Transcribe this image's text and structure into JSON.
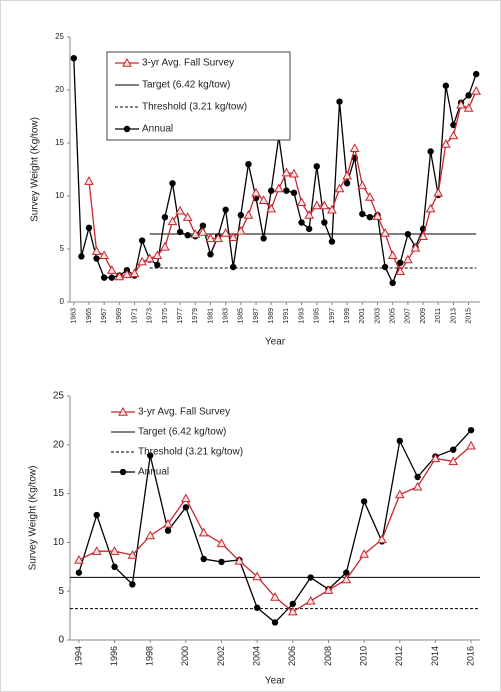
{
  "chart_data": [
    {
      "type": "line",
      "xlabel": "Year",
      "ylabel": "Survey Weight (Kg/tow)",
      "legend_box": true,
      "x": [
        1963,
        1964,
        1965,
        1966,
        1967,
        1968,
        1969,
        1970,
        1971,
        1972,
        1973,
        1974,
        1975,
        1976,
        1977,
        1978,
        1979,
        1980,
        1981,
        1982,
        1983,
        1984,
        1985,
        1986,
        1987,
        1988,
        1989,
        1990,
        1991,
        1992,
        1993,
        1994,
        1995,
        1996,
        1997,
        1998,
        1999,
        2000,
        2001,
        2002,
        2003,
        2004,
        2005,
        2006,
        2007,
        2008,
        2009,
        2010,
        2011,
        2012,
        2013,
        2014,
        2015,
        2016
      ],
      "xlim": [
        1962.5,
        2016.5
      ],
      "xticks": [
        1963,
        1965,
        1967,
        1969,
        1971,
        1973,
        1975,
        1977,
        1979,
        1981,
        1983,
        1985,
        1987,
        1989,
        1991,
        1993,
        1995,
        1997,
        1999,
        2001,
        2003,
        2005,
        2007,
        2009,
        2011,
        2013,
        2015
      ],
      "ylim": [
        0,
        25
      ],
      "yticks": [
        0,
        5,
        10,
        15,
        20,
        25
      ],
      "series": [
        {
          "name": "3-yr Avg. Fall Survey",
          "color": "#c8262e",
          "marker": "triangle",
          "values": [
            null,
            null,
            11.4,
            4.8,
            4.4,
            3,
            2.4,
            2.6,
            2.7,
            3.8,
            4.1,
            4.4,
            5.2,
            7.6,
            8.6,
            8.0,
            6.4,
            6.6,
            6.0,
            6.0,
            6.5,
            6.1,
            6.7,
            8.2,
            10.3,
            9.6,
            8.8,
            10.7,
            12.2,
            12.1,
            9.4,
            8.2,
            9.1,
            9.1,
            8.7,
            10.7,
            11.9,
            14.5,
            11.0,
            9.9,
            8.1,
            6.5,
            4.4,
            2.9,
            4.0,
            5.1,
            6.2,
            8.8,
            10.3,
            14.9,
            15.7,
            18.6,
            18.3,
            19.9
          ]
        },
        {
          "name": "Target (6.42 kg/tow)",
          "color": "#000000",
          "x": [
            1973,
            2016
          ],
          "values": [
            6.42,
            6.42
          ]
        },
        {
          "name": "Threshold (3.21 kg/tow)",
          "color": "#000000",
          "dashed": true,
          "x": [
            1973,
            2016
          ],
          "values": [
            3.21,
            3.21
          ]
        },
        {
          "name": "Annual",
          "color": "#000000",
          "marker": "circle",
          "values": [
            23,
            4.3,
            7,
            4.1,
            2.3,
            2.3,
            2.5,
            3,
            2.5,
            5.8,
            4,
            3.5,
            8,
            11.2,
            6.6,
            6.3,
            6.2,
            7.2,
            4.5,
            6.2,
            8.7,
            3.3,
            8.2,
            13,
            9.8,
            6,
            10.5,
            15.6,
            10.5,
            10.3,
            7.5,
            6.9,
            12.8,
            7.5,
            5.7,
            18.9,
            11.2,
            13.6,
            8.3,
            8.0,
            8.2,
            3.3,
            1.8,
            3.7,
            6.4,
            5.2,
            6.9,
            14.2,
            10.1,
            20.4,
            16.7,
            18.8,
            19.5,
            21.5
          ]
        }
      ]
    },
    {
      "type": "line",
      "xlabel": "Year",
      "ylabel": "Survey Weight (Kg/tow)",
      "legend_box": false,
      "x": [
        1994,
        1995,
        1996,
        1997,
        1998,
        1999,
        2000,
        2001,
        2002,
        2003,
        2004,
        2005,
        2006,
        2007,
        2008,
        2009,
        2010,
        2011,
        2012,
        2013,
        2014,
        2015,
        2016
      ],
      "xlim": [
        1993.5,
        2016.5
      ],
      "xticks": [
        1994,
        1996,
        1998,
        2000,
        2002,
        2004,
        2006,
        2008,
        2010,
        2012,
        2014,
        2016
      ],
      "ylim": [
        0,
        25
      ],
      "yticks": [
        0,
        5,
        10,
        15,
        20,
        25
      ],
      "series": [
        {
          "name": "3-yr Avg. Fall Survey",
          "color": "#c8262e",
          "marker": "triangle",
          "values": [
            8.2,
            9.1,
            9.1,
            8.7,
            10.7,
            11.9,
            14.5,
            11.0,
            9.9,
            8.1,
            6.5,
            4.4,
            2.9,
            4.0,
            5.1,
            6.2,
            8.8,
            10.3,
            14.9,
            15.7,
            18.6,
            18.3,
            19.9
          ]
        },
        {
          "name": "Target (6.42 kg/tow)",
          "color": "#000000",
          "x": [
            1993.5,
            2016.5
          ],
          "values": [
            6.42,
            6.42
          ]
        },
        {
          "name": "Threshold (3.21 kg/tow)",
          "color": "#000000",
          "dashed": true,
          "x": [
            1993.5,
            2016.5
          ],
          "values": [
            3.21,
            3.21
          ]
        },
        {
          "name": "Annual",
          "color": "#000000",
          "marker": "circle",
          "values": [
            6.9,
            12.8,
            7.5,
            5.7,
            18.9,
            11.2,
            13.6,
            8.3,
            8.0,
            8.2,
            3.3,
            1.8,
            3.7,
            6.4,
            5.2,
            6.9,
            14.2,
            10.1,
            20.4,
            16.7,
            18.8,
            19.5,
            21.5
          ]
        }
      ]
    }
  ]
}
